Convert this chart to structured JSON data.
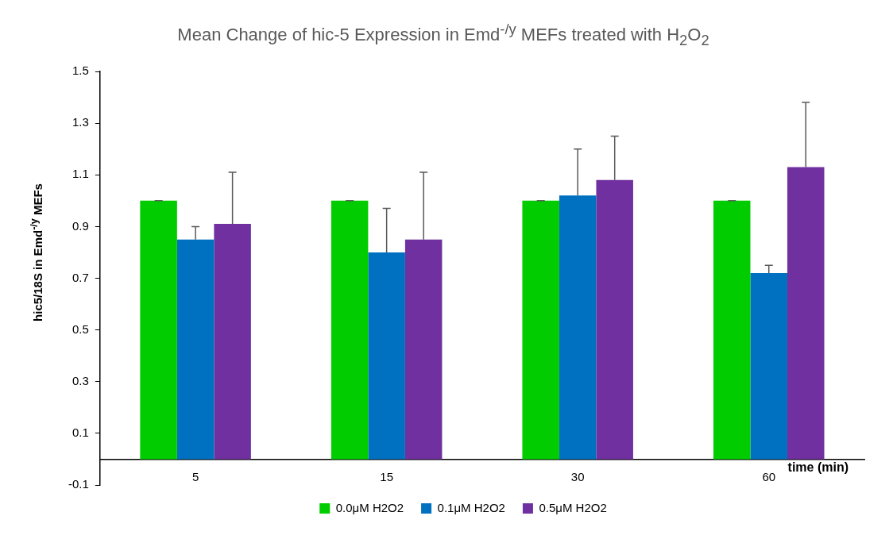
{
  "chart_data": {
    "type": "bar",
    "title": "Mean Change of hic-5 Expression in Emd$^{-/y}$ MEFs treated with H$_{2}$O$_{2}$",
    "xlabel": "time (min)",
    "ylabel": "hic5/18S in Emd$^{-/y}$ MEFs",
    "categories": [
      "5",
      "15",
      "30",
      "60"
    ],
    "series": [
      {
        "name": "0.0μM H2O2",
        "color": "#00cc00",
        "values": [
          1.0,
          1.0,
          1.0,
          1.0
        ],
        "errors": [
          [
            1.0,
            1.0
          ],
          [
            1.0,
            1.0
          ],
          [
            1.0,
            1.0
          ],
          [
            1.0,
            1.0
          ]
        ]
      },
      {
        "name": "0.1μM H2O2",
        "color": "#0070c0",
        "values": [
          0.85,
          0.8,
          1.02,
          0.72
        ],
        "errors": [
          [
            0.85,
            0.9
          ],
          [
            0.8,
            0.97
          ],
          [
            1.02,
            1.2
          ],
          [
            0.72,
            0.75
          ]
        ]
      },
      {
        "name": "0.5μM H2O2",
        "color": "#7030a0",
        "values": [
          0.91,
          0.85,
          1.08,
          1.13
        ],
        "errors": [
          [
            0.91,
            1.11
          ],
          [
            0.85,
            1.11
          ],
          [
            1.08,
            1.25
          ],
          [
            1.13,
            1.38
          ]
        ]
      }
    ],
    "ylim": [
      -0.1,
      1.5
    ],
    "yticks": [
      -0.1,
      0.1,
      0.3,
      0.5,
      0.7,
      0.9,
      1.1,
      1.3,
      1.5
    ],
    "grid": false,
    "legend": "bottom"
  }
}
